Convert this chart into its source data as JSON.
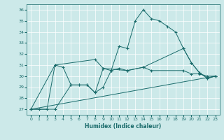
{
  "xlabel": "Humidex (Indice chaleur)",
  "bg_color": "#cce9e9",
  "line_color": "#1a6b6b",
  "grid_color": "#ffffff",
  "xlim": [
    -0.5,
    23.5
  ],
  "ylim": [
    26.5,
    36.5
  ],
  "yticks": [
    27,
    28,
    29,
    30,
    31,
    32,
    33,
    34,
    35,
    36
  ],
  "xticks": [
    0,
    1,
    2,
    3,
    4,
    5,
    6,
    7,
    8,
    9,
    10,
    11,
    12,
    13,
    14,
    15,
    16,
    17,
    18,
    19,
    20,
    21,
    22,
    23
  ],
  "series1_x": [
    0,
    1,
    2,
    3,
    4,
    5,
    6,
    7,
    8,
    9,
    10,
    11,
    12,
    13,
    14,
    15,
    16,
    17,
    18,
    19,
    20,
    21,
    22,
    23
  ],
  "series1_y": [
    27.0,
    27.0,
    27.0,
    31.0,
    30.8,
    29.2,
    29.2,
    29.2,
    28.5,
    30.7,
    30.5,
    32.7,
    32.5,
    35.0,
    36.0,
    35.2,
    35.0,
    34.5,
    34.0,
    32.5,
    31.2,
    30.3,
    29.8,
    30.0
  ],
  "series2_x": [
    0,
    3,
    5,
    6,
    7,
    8,
    9,
    10,
    11,
    12,
    14,
    15,
    19,
    20,
    21,
    22,
    23
  ],
  "series2_y": [
    27.0,
    27.0,
    29.2,
    29.2,
    29.2,
    28.5,
    29.0,
    30.5,
    30.7,
    30.5,
    30.8,
    30.5,
    30.5,
    30.2,
    30.2,
    30.0,
    30.0
  ],
  "series3_x": [
    0,
    23
  ],
  "series3_y": [
    27.0,
    30.0
  ],
  "series4_x": [
    0,
    3,
    8,
    9,
    12,
    14,
    19,
    20,
    21,
    22,
    23
  ],
  "series4_y": [
    27.0,
    31.0,
    31.5,
    30.7,
    30.5,
    30.8,
    32.5,
    31.2,
    30.3,
    29.8,
    30.0
  ]
}
